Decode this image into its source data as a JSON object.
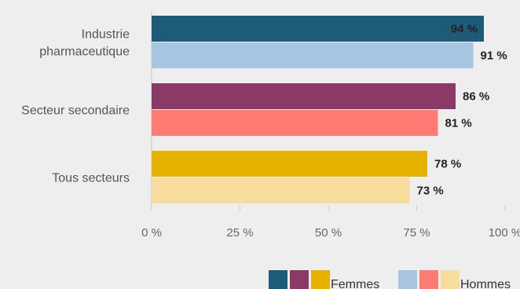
{
  "chart_data": {
    "type": "bar",
    "orientation": "horizontal",
    "categories": [
      [
        "Industrie",
        "pharmaceutique"
      ],
      [
        "Secteur secondaire"
      ],
      [
        "Tous secteurs"
      ]
    ],
    "series": [
      {
        "name": "Femmes",
        "values": [
          94,
          86,
          78
        ],
        "colors": [
          "#1e5b79",
          "#8b3a68",
          "#e6b200"
        ]
      },
      {
        "name": "Hommes",
        "values": [
          91,
          81,
          73
        ],
        "colors": [
          "#a7c4e0",
          "#ff7b73",
          "#f7dc9e"
        ]
      }
    ],
    "data_labels": [
      [
        "94 %",
        "86 %",
        "78 %"
      ],
      [
        "91 %",
        "81 %",
        "73 %"
      ]
    ],
    "x_ticks": [
      "0 %",
      "25 %",
      "50 %",
      "75 %",
      "100 %"
    ],
    "xlim": [
      0,
      100
    ],
    "grid": false,
    "legend_placement": "bottom-right"
  }
}
